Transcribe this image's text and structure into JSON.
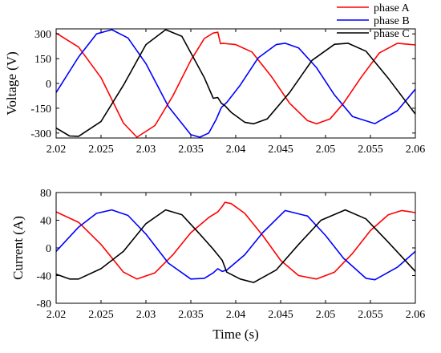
{
  "chart_data": [
    {
      "type": "line",
      "title": "",
      "xlabel": "",
      "ylabel": "Voltage (V)",
      "xlim": [
        2.02,
        2.06
      ],
      "ylim": [
        -330,
        330
      ],
      "xticks": [
        2.02,
        2.025,
        2.03,
        2.035,
        2.04,
        2.045,
        2.05,
        2.055,
        2.06
      ],
      "xtick_labels": [
        "2.02",
        "2.025",
        "2.03",
        "2.035",
        "2.04",
        "2.045",
        "2.05",
        "2.055",
        "2.06"
      ],
      "yticks": [
        300,
        150,
        0,
        -150,
        -300
      ],
      "ytick_labels": [
        "300",
        "150",
        "0",
        "-150",
        "-300"
      ],
      "grid": false,
      "legend_position": "top-right",
      "series": [
        {
          "name": "phase A",
          "color": "#ff0000",
          "x": [
            2.02,
            2.0225,
            2.025,
            2.0275,
            2.029,
            2.031,
            2.033,
            2.035,
            2.0365,
            2.0375,
            2.038,
            2.0383,
            2.0386,
            2.039,
            2.04,
            2.0418,
            2.044,
            2.046,
            2.048,
            2.049,
            2.0505,
            2.052,
            2.054,
            2.056,
            2.058,
            2.06
          ],
          "y": [
            305,
            220,
            35,
            -240,
            -325,
            -255,
            -75,
            140,
            272,
            305,
            310,
            240,
            242,
            240,
            235,
            190,
            40,
            -120,
            -225,
            -244,
            -215,
            -120,
            40,
            185,
            243,
            233
          ]
        },
        {
          "name": "phase B",
          "color": "#0000ff",
          "x": [
            2.02,
            2.0225,
            2.0245,
            2.0262,
            2.028,
            2.03,
            2.0325,
            2.035,
            2.036,
            2.037,
            2.0378,
            2.0384,
            2.039,
            2.0405,
            2.0425,
            2.0445,
            2.0455,
            2.047,
            2.049,
            2.051,
            2.053,
            2.0555,
            2.058,
            2.06
          ],
          "y": [
            -55,
            160,
            300,
            325,
            275,
            120,
            -140,
            -310,
            -325,
            -300,
            -220,
            -145,
            -115,
            -10,
            155,
            235,
            243,
            215,
            95,
            -70,
            -200,
            -243,
            -165,
            -35
          ]
        },
        {
          "name": "phase C",
          "color": "#000000",
          "x": [
            2.02,
            2.0215,
            2.0225,
            2.025,
            2.0275,
            2.03,
            2.0322,
            2.034,
            2.0365,
            2.0375,
            2.038,
            2.0384,
            2.0388,
            2.0395,
            2.041,
            2.042,
            2.0435,
            2.046,
            2.0485,
            2.051,
            2.0525,
            2.0545,
            2.057,
            2.06
          ],
          "y": [
            -270,
            -318,
            -320,
            -230,
            -10,
            235,
            325,
            285,
            35,
            -90,
            -85,
            -120,
            -135,
            -175,
            -235,
            -244,
            -215,
            -55,
            140,
            237,
            243,
            195,
            30,
            -185
          ]
        }
      ]
    },
    {
      "type": "line",
      "title": "",
      "xlabel": "Time (s)",
      "ylabel": "Current (A)",
      "xlim": [
        2.02,
        2.06
      ],
      "ylim": [
        -80,
        80
      ],
      "xticks": [
        2.02,
        2.025,
        2.03,
        2.035,
        2.04,
        2.045,
        2.05,
        2.055,
        2.06
      ],
      "xtick_labels": [
        "2.02",
        "2.025",
        "2.03",
        "2.035",
        "2.04",
        "2.045",
        "2.05",
        "2.055",
        "2.06"
      ],
      "yticks": [
        80,
        40,
        0,
        -40,
        -80
      ],
      "ytick_labels": [
        "80",
        "40",
        "0",
        "-40",
        "-80"
      ],
      "grid": false,
      "series": [
        {
          "name": "phase A",
          "color": "#ff0000",
          "x": [
            2.02,
            2.0225,
            2.025,
            2.0275,
            2.029,
            2.031,
            2.033,
            2.035,
            2.037,
            2.038,
            2.0385,
            2.0388,
            2.0395,
            2.041,
            2.043,
            2.045,
            2.047,
            2.049,
            2.051,
            2.053,
            2.055,
            2.057,
            2.0585,
            2.06
          ],
          "y": [
            52,
            37,
            5,
            -35,
            -45,
            -36,
            -10,
            22,
            44,
            52,
            60,
            66,
            64,
            50,
            18,
            -18,
            -40,
            -45,
            -35,
            -8,
            25,
            48,
            54,
            51
          ]
        },
        {
          "name": "phase B",
          "color": "#0000ff",
          "x": [
            2.02,
            2.0225,
            2.0245,
            2.0262,
            2.028,
            2.03,
            2.0325,
            2.035,
            2.0365,
            2.0375,
            2.038,
            2.0385,
            2.039,
            2.041,
            2.043,
            2.0455,
            2.048,
            2.05,
            2.052,
            2.0545,
            2.0555,
            2.058,
            2.06
          ],
          "y": [
            -5,
            30,
            50,
            55,
            47,
            20,
            -22,
            -45,
            -44,
            -36,
            -30,
            -34,
            -32,
            -10,
            22,
            54,
            46,
            18,
            -15,
            -44,
            -46,
            -28,
            -5
          ]
        },
        {
          "name": "phase C",
          "color": "#000000",
          "x": [
            2.02,
            2.0215,
            2.0225,
            2.025,
            2.0275,
            2.03,
            2.0322,
            2.034,
            2.036,
            2.0375,
            2.038,
            2.0385,
            2.039,
            2.0405,
            2.042,
            2.0445,
            2.047,
            2.0495,
            2.0522,
            2.0545,
            2.057,
            2.06
          ],
          "y": [
            -38,
            -45,
            -45,
            -30,
            -5,
            35,
            55,
            48,
            20,
            -2,
            -10,
            -18,
            -35,
            -45,
            -50,
            -32,
            5,
            40,
            55,
            42,
            8,
            -34
          ]
        }
      ]
    }
  ]
}
